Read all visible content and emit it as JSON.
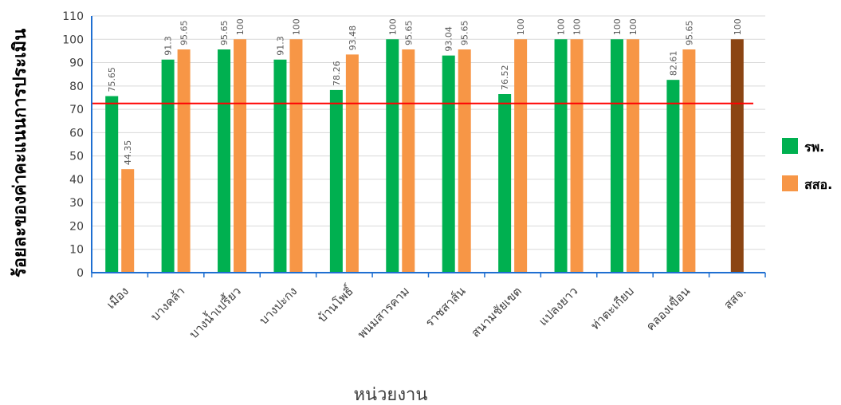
{
  "chart_data": {
    "type": "bar",
    "ylabel": "ร้อยละของค่าคะแนนการประเมิน",
    "xlabel": "หน่วยงาน",
    "ylim": [
      0,
      110
    ],
    "yticks": [
      0,
      10,
      20,
      30,
      40,
      50,
      60,
      70,
      80,
      90,
      100,
      110
    ],
    "grid": true,
    "legend_position": "right",
    "categories": [
      "เมือง",
      "บางคล้า",
      "บางน้ำเปรี้ยว",
      "บางปะกง",
      "บ้านโพธิ์",
      "พนมสารคาม",
      "ราชสาส์น",
      "สนามชัยเขต",
      "แปลงยาว",
      "ท่าตะเกียบ",
      "คลองเขื่อน",
      "สสจ."
    ],
    "series": [
      {
        "name": "รพ.",
        "color": "#00b050",
        "values": [
          75.65,
          91.3,
          95.65,
          91.3,
          78.26,
          100,
          93.04,
          76.52,
          100,
          100,
          82.61,
          null
        ],
        "labels": [
          "75.65",
          "91.3",
          "95.65",
          "91.3",
          "78.26",
          "100",
          "93.04",
          "76.52",
          "100",
          "100",
          "82.61",
          ""
        ]
      },
      {
        "name": "สสอ.",
        "color": "#f79646",
        "values": [
          44.35,
          95.65,
          100,
          100,
          93.48,
          95.65,
          95.65,
          100,
          100,
          100,
          95.65,
          null
        ],
        "labels": [
          "44.35",
          "95.65",
          "100",
          "100",
          "93.48",
          "95.65",
          "95.65",
          "100",
          "100",
          "100",
          "95.65",
          ""
        ]
      }
    ],
    "extra_bar": {
      "category": "สสจ.",
      "value": 100,
      "label": "100",
      "color": "#8b4513"
    },
    "reference_line": {
      "value": 72.5,
      "color": "#ff0000"
    },
    "axis_color": "#1f6fd1"
  }
}
